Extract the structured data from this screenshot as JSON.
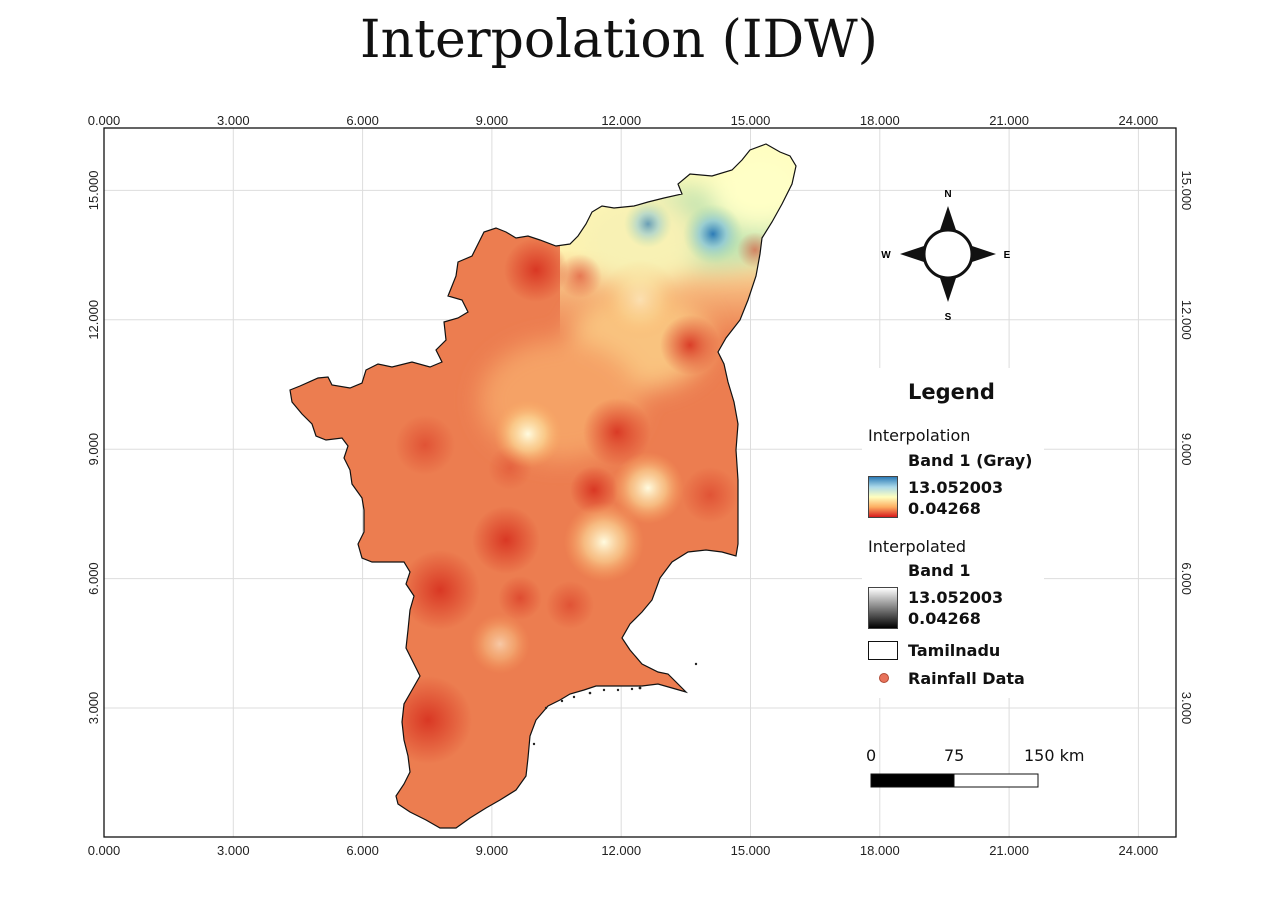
{
  "title": "Interpolation (IDW)",
  "axes": {
    "x_ticks": [
      "0.000",
      "3.000",
      "6.000",
      "9.000",
      "12.000",
      "15.000",
      "18.000",
      "21.000",
      "24.000"
    ],
    "y_ticks": [
      "3.000",
      "6.000",
      "9.000",
      "12.000",
      "15.000"
    ]
  },
  "compass": {
    "n": "N",
    "s": "S",
    "e": "E",
    "w": "W"
  },
  "legend": {
    "title": "Legend",
    "interpolation": {
      "label": "Interpolation",
      "band": "Band 1 (Gray)",
      "max": "13.052003",
      "min": "0.04268"
    },
    "interpolated": {
      "label": "Interpolated",
      "band": "Band 1",
      "max": "13.052003",
      "min": "0.04268"
    },
    "boundary_label": "Tamilnadu",
    "points_label": "Rainfall Data"
  },
  "scale_bar": {
    "labels": [
      "0",
      "75",
      "150 km"
    ]
  },
  "colors": {
    "ramp_high": "#2c7bb6",
    "ramp_mid": "#ffffbf",
    "ramp_low": "#d7191c",
    "base_fill": "#ea7a4e",
    "grid": "#d9d9d9"
  }
}
